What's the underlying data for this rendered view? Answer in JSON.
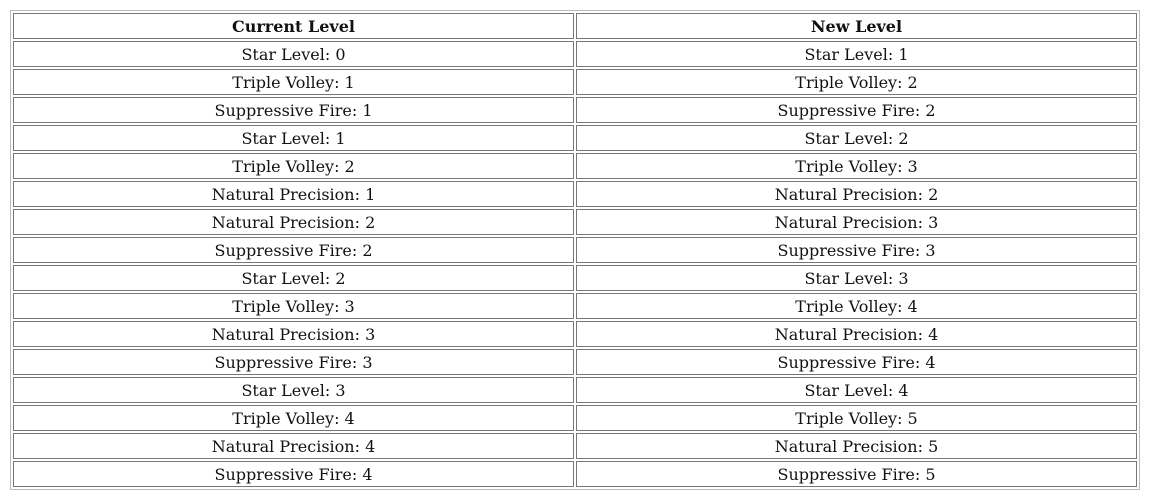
{
  "table": {
    "headers": [
      "Current Level",
      "New Level"
    ],
    "rows": [
      [
        "Star Level: 0",
        "Star Level: 1"
      ],
      [
        "Triple Volley: 1",
        "Triple Volley: 2"
      ],
      [
        "Suppressive Fire: 1",
        "Suppressive Fire: 2"
      ],
      [
        "Star Level: 1",
        "Star Level: 2"
      ],
      [
        "Triple Volley: 2",
        "Triple Volley: 3"
      ],
      [
        "Natural Precision: 1",
        "Natural Precision: 2"
      ],
      [
        "Natural Precision: 2",
        "Natural Precision: 3"
      ],
      [
        "Suppressive Fire: 2",
        "Suppressive Fire: 3"
      ],
      [
        "Star Level: 2",
        "Star Level: 3"
      ],
      [
        "Triple Volley: 3",
        "Triple Volley: 4"
      ],
      [
        "Natural Precision: 3",
        "Natural Precision: 4"
      ],
      [
        "Suppressive Fire: 3",
        "Suppressive Fire: 4"
      ],
      [
        "Star Level: 3",
        "Star Level: 4"
      ],
      [
        "Triple Volley: 4",
        "Triple Volley: 5"
      ],
      [
        "Natural Precision: 4",
        "Natural Precision: 5"
      ],
      [
        "Suppressive Fire: 4",
        "Suppressive Fire: 5"
      ]
    ]
  }
}
